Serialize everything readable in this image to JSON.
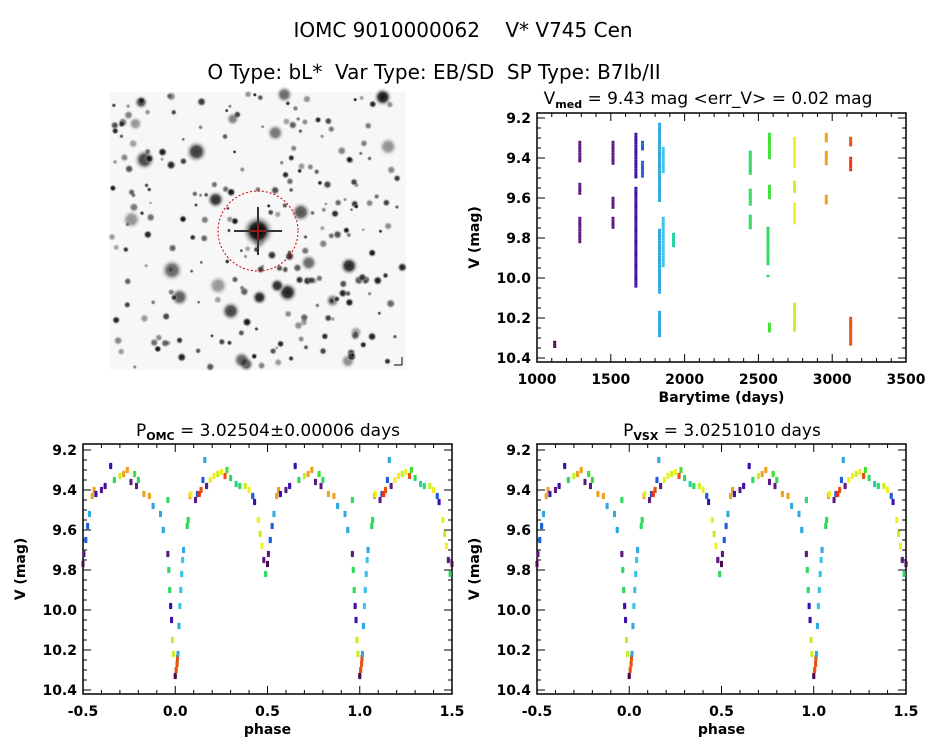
{
  "header": {
    "title": "IOMC 9010000062    V* V745 Cen",
    "subtitle": "O Type: bL*  Var Type: EB/SD  SP Type: B7Ib/II"
  },
  "palette": [
    "#4a0a50",
    "#5a1a80",
    "#3a10a8",
    "#1e5fd8",
    "#2fa8e0",
    "#3cc4e8",
    "#22d0a0",
    "#30d860",
    "#40e030",
    "#c8f020",
    "#f0f020",
    "#f0a020",
    "#e85010",
    "#f03010"
  ],
  "chart_data": [
    {
      "type": "scatter",
      "title_main": "V",
      "title_sub": "med",
      "title_rest": " = 9.43 mag <err_V> = 0.02 mag",
      "xlabel": "Barytime (days)",
      "ylabel": "V (mag)",
      "xlim": [
        1000,
        3500
      ],
      "ylim": [
        9.175,
        10.42
      ],
      "y_inverted": true,
      "xticks": [
        "1000",
        "1500",
        "2000",
        "2500",
        "3000",
        "3500"
      ],
      "yticks": [
        "9.2",
        "9.4",
        "9.6",
        "9.8",
        "10.0",
        "10.2",
        "10.4"
      ],
      "segments_note": "each entry: [barytime, mag_from, mag_to, color_index]",
      "segments": [
        [
          1120,
          10.32,
          10.35,
          0
        ],
        [
          1290,
          9.32,
          9.42,
          1
        ],
        [
          1290,
          9.53,
          9.58,
          1
        ],
        [
          1290,
          9.7,
          9.82,
          1
        ],
        [
          1515,
          9.32,
          9.43,
          1
        ],
        [
          1515,
          9.6,
          9.65,
          1
        ],
        [
          1515,
          9.7,
          9.75,
          1
        ],
        [
          1670,
          9.28,
          9.5,
          2
        ],
        [
          1670,
          9.55,
          10.05,
          2
        ],
        [
          1715,
          9.32,
          9.36,
          3
        ],
        [
          1715,
          9.42,
          9.5,
          3
        ],
        [
          1830,
          9.23,
          9.62,
          4
        ],
        [
          1830,
          9.76,
          10.08,
          4
        ],
        [
          1830,
          10.17,
          10.29,
          4
        ],
        [
          1855,
          9.35,
          9.48,
          5
        ],
        [
          1855,
          9.7,
          9.95,
          5
        ],
        [
          1925,
          9.78,
          9.84,
          6
        ],
        [
          2445,
          9.37,
          9.48,
          7
        ],
        [
          2445,
          9.56,
          9.64,
          7
        ],
        [
          2445,
          9.69,
          9.75,
          7
        ],
        [
          2575,
          9.28,
          9.4,
          8
        ],
        [
          2575,
          9.54,
          9.6,
          8
        ],
        [
          2565,
          9.75,
          9.93,
          7
        ],
        [
          2565,
          9.99,
          9.99,
          7
        ],
        [
          2575,
          10.23,
          10.27,
          8
        ],
        [
          2745,
          9.3,
          9.45,
          10
        ],
        [
          2745,
          9.52,
          9.57,
          9
        ],
        [
          2745,
          9.63,
          9.73,
          10
        ],
        [
          2745,
          10.13,
          10.27,
          9
        ],
        [
          2960,
          9.28,
          9.32,
          11
        ],
        [
          2960,
          9.37,
          9.43,
          11
        ],
        [
          2960,
          9.59,
          9.63,
          11
        ],
        [
          3125,
          9.3,
          9.34,
          12
        ],
        [
          3125,
          9.4,
          9.47,
          13
        ],
        [
          3125,
          10.2,
          10.34,
          12
        ]
      ]
    },
    {
      "type": "scatter",
      "title_main": "P",
      "title_sub": "OMC",
      "title_rest": " = 3.02504±0.00006 days",
      "xlabel": "phase",
      "ylabel": "V (mag)",
      "xlim": [
        -0.5,
        1.5
      ],
      "ylim": [
        9.17,
        10.42
      ],
      "y_inverted": true,
      "xticks": [
        "-0.5",
        "0.0",
        "0.5",
        "1.0",
        "1.5"
      ],
      "yticks": [
        "9.2",
        "9.4",
        "9.6",
        "9.8",
        "10.0",
        "10.2",
        "10.4"
      ],
      "points_note": "each entry: [phase, mag, color_index]; plotted repeated at phase-1 and phase+1",
      "points": [
        [
          0.0,
          10.33,
          0
        ],
        [
          0.005,
          10.3,
          12
        ],
        [
          0.01,
          10.27,
          12
        ],
        [
          0.012,
          10.24,
          12
        ],
        [
          -0.01,
          10.22,
          9
        ],
        [
          -0.015,
          10.15,
          9
        ],
        [
          0.015,
          10.22,
          4
        ],
        [
          -0.02,
          10.05,
          2
        ],
        [
          -0.025,
          9.98,
          2
        ],
        [
          -0.03,
          9.9,
          7
        ],
        [
          -0.035,
          9.8,
          7
        ],
        [
          -0.04,
          9.72,
          1
        ],
        [
          0.02,
          10.08,
          4
        ],
        [
          0.025,
          9.98,
          5
        ],
        [
          0.03,
          9.9,
          5
        ],
        [
          0.035,
          9.82,
          5
        ],
        [
          0.04,
          9.75,
          5
        ],
        [
          0.045,
          9.7,
          4
        ],
        [
          0.065,
          9.58,
          7
        ],
        [
          0.07,
          9.55,
          7
        ],
        [
          0.08,
          9.43,
          11
        ],
        [
          0.085,
          9.42,
          10
        ],
        [
          0.11,
          9.45,
          1
        ],
        [
          0.12,
          9.42,
          3
        ],
        [
          0.13,
          9.42,
          13
        ],
        [
          0.14,
          9.4,
          12
        ],
        [
          0.15,
          9.35,
          3
        ],
        [
          0.16,
          9.25,
          4
        ],
        [
          0.17,
          9.38,
          1
        ],
        [
          0.19,
          9.35,
          10
        ],
        [
          0.21,
          9.33,
          10
        ],
        [
          0.23,
          9.32,
          9
        ],
        [
          0.25,
          9.31,
          10
        ],
        [
          0.27,
          9.33,
          12
        ],
        [
          0.28,
          9.3,
          8
        ],
        [
          0.3,
          9.34,
          7
        ],
        [
          0.33,
          9.37,
          6
        ],
        [
          0.35,
          9.38,
          7
        ],
        [
          0.38,
          9.38,
          9
        ],
        [
          0.4,
          9.4,
          10
        ],
        [
          0.42,
          9.43,
          3
        ],
        [
          0.43,
          9.46,
          2
        ],
        [
          0.45,
          9.55,
          10
        ],
        [
          0.46,
          9.62,
          9
        ],
        [
          0.47,
          9.68,
          10
        ],
        [
          0.48,
          9.75,
          1
        ],
        [
          0.49,
          9.82,
          7
        ],
        [
          0.5,
          9.77,
          0
        ],
        [
          0.505,
          9.72,
          1
        ],
        [
          0.515,
          9.65,
          3
        ],
        [
          0.525,
          9.58,
          3
        ],
        [
          0.535,
          9.52,
          4
        ],
        [
          0.55,
          9.43,
          11
        ],
        [
          0.56,
          9.4,
          11
        ],
        [
          0.57,
          9.42,
          2
        ],
        [
          0.6,
          9.4,
          1
        ],
        [
          0.62,
          9.38,
          2
        ],
        [
          0.65,
          9.28,
          2
        ],
        [
          0.67,
          9.35,
          7
        ],
        [
          0.7,
          9.33,
          9
        ],
        [
          0.72,
          9.32,
          11
        ],
        [
          0.74,
          9.3,
          11
        ],
        [
          0.76,
          9.36,
          1
        ],
        [
          0.78,
          9.32,
          8
        ],
        [
          0.79,
          9.38,
          1
        ],
        [
          0.8,
          9.35,
          7
        ],
        [
          0.83,
          9.42,
          11
        ],
        [
          0.86,
          9.43,
          11
        ],
        [
          0.88,
          9.48,
          4
        ],
        [
          0.92,
          9.52,
          4
        ],
        [
          0.935,
          9.6,
          4
        ],
        [
          0.96,
          9.45,
          7
        ]
      ]
    },
    {
      "type": "scatter",
      "title_main": "P",
      "title_sub": "VSX",
      "title_rest": " = 3.0251010 days",
      "xlabel": "phase",
      "ylabel": "V (mag)",
      "xlim": [
        -0.5,
        1.5
      ],
      "ylim": [
        9.17,
        10.42
      ],
      "y_inverted": true,
      "xticks": [
        "-0.5",
        "0.0",
        "0.5",
        "1.0",
        "1.5"
      ],
      "yticks": [
        "9.2",
        "9.4",
        "9.6",
        "9.8",
        "10.0",
        "10.2",
        "10.4"
      ],
      "points_from": "same folded observations as OMC period panel"
    }
  ]
}
